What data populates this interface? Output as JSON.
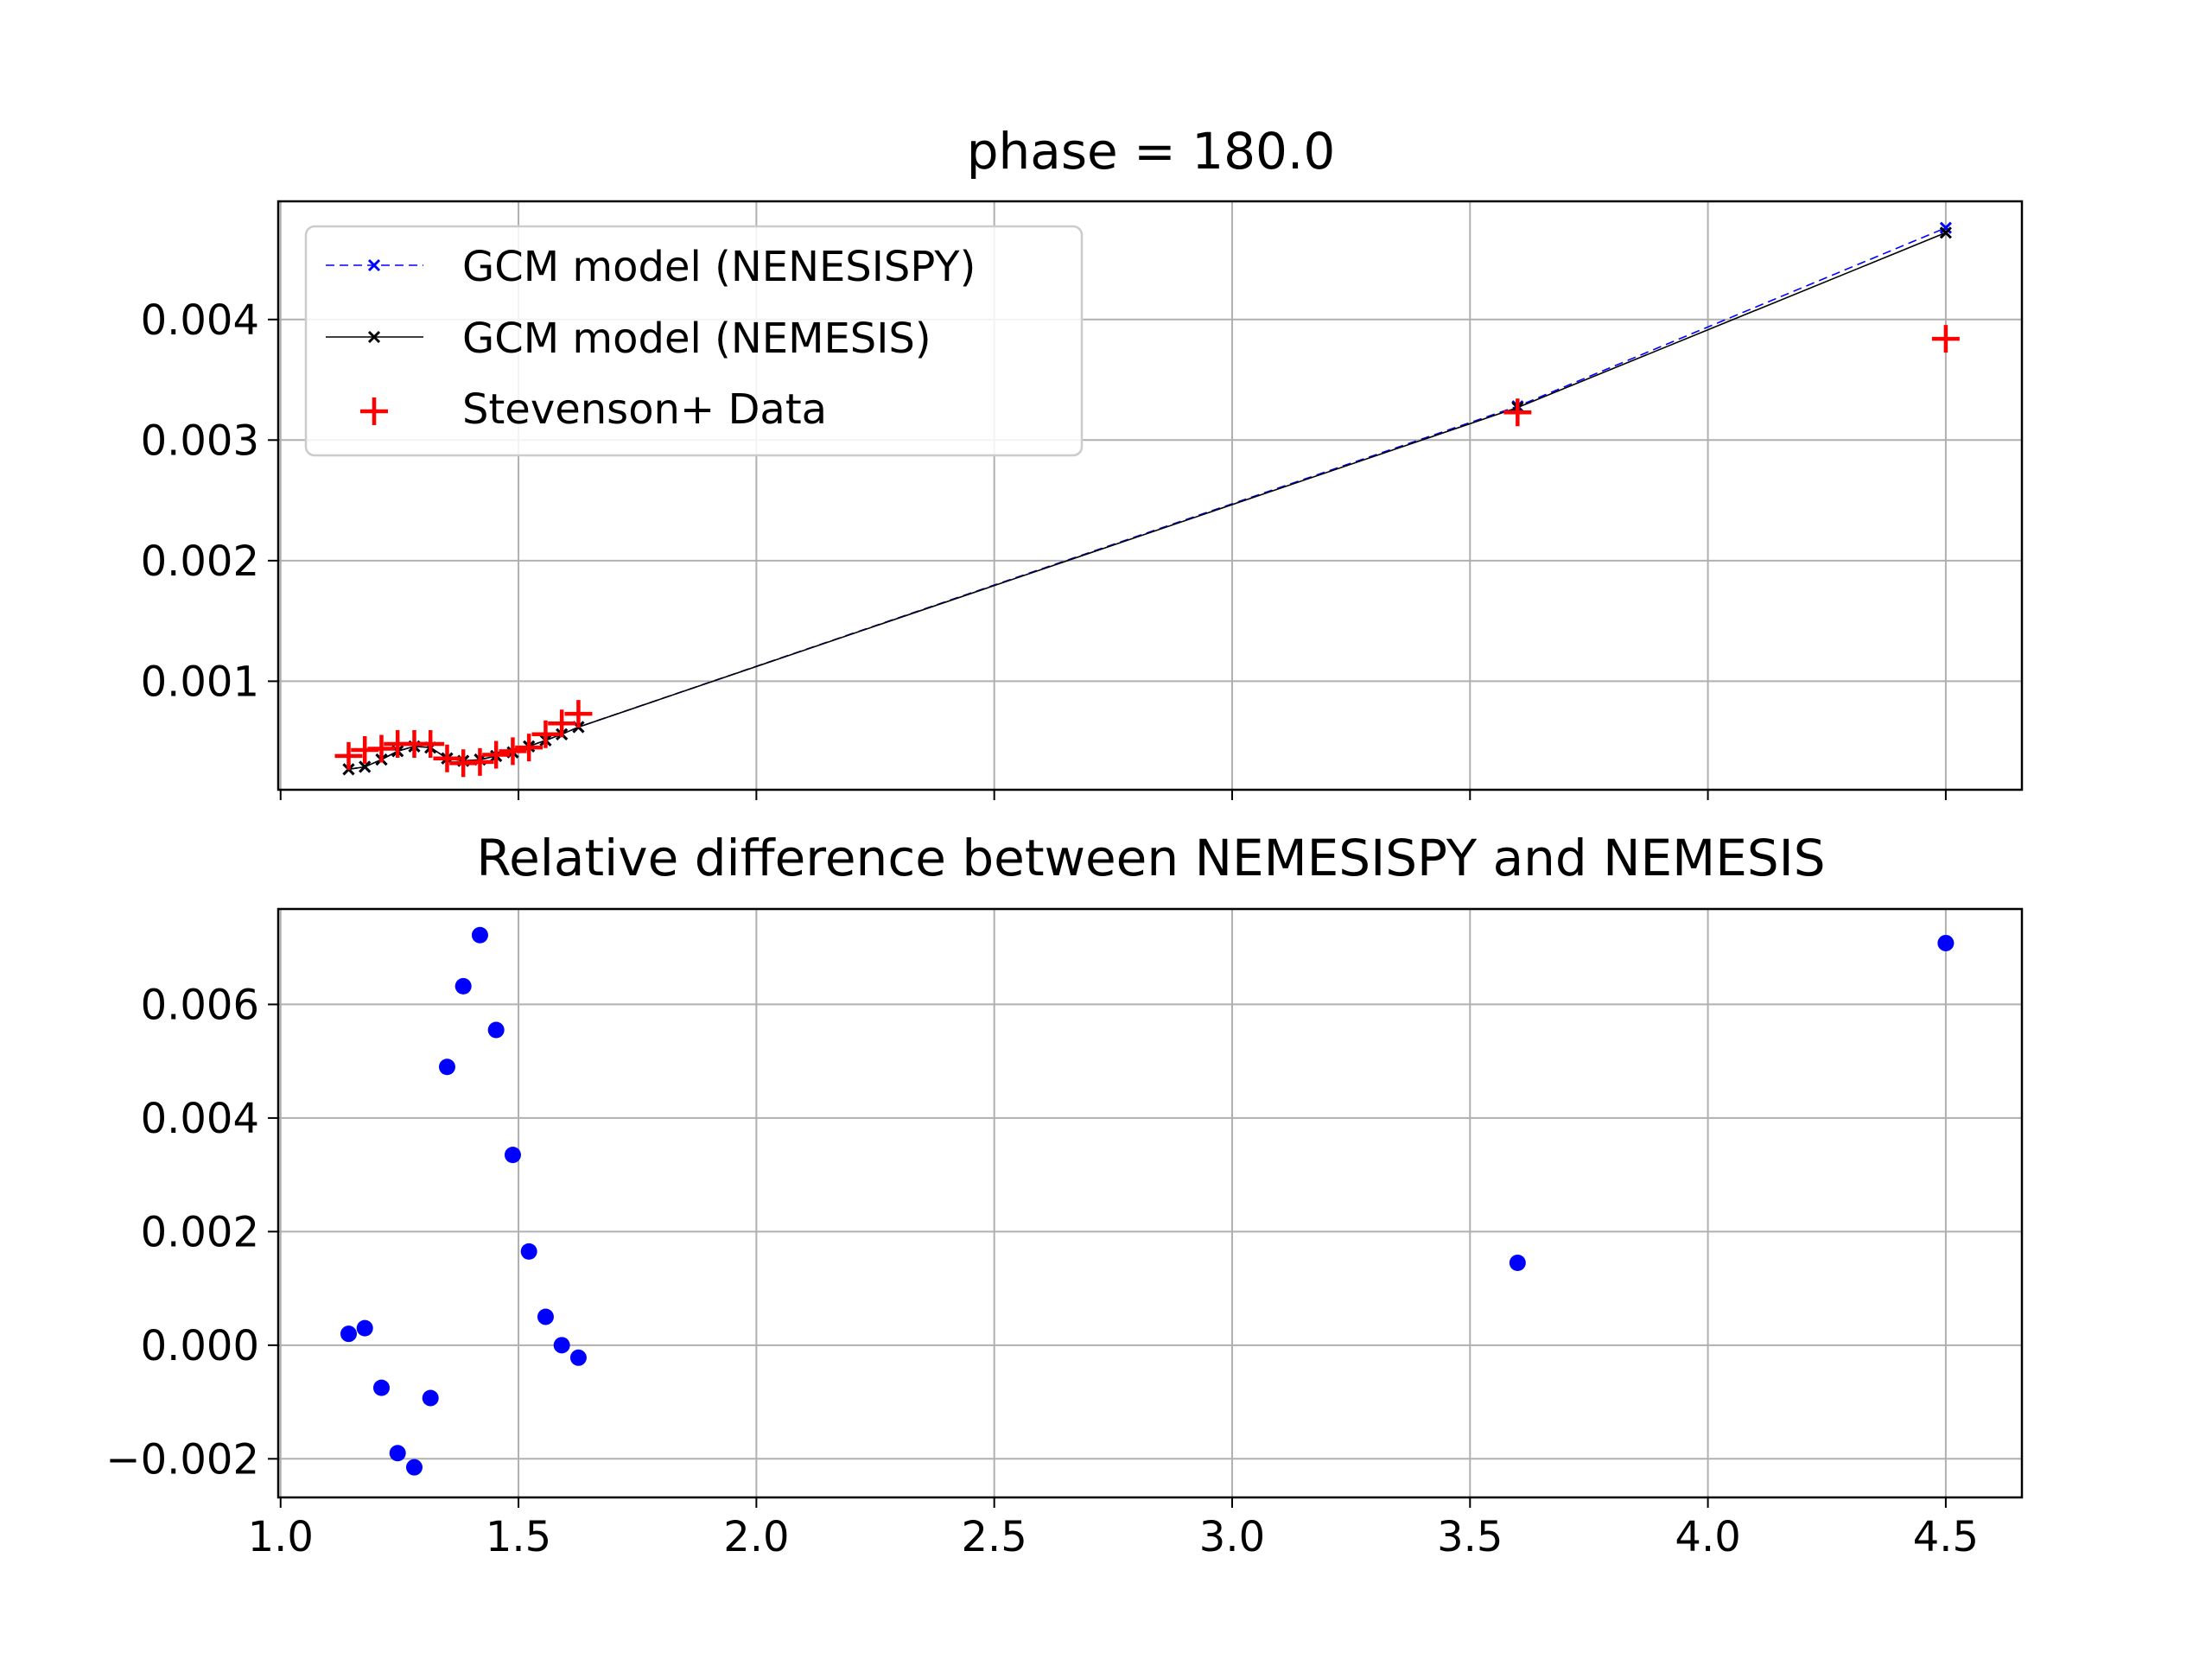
{
  "chart_data": [
    {
      "type": "line",
      "title": "phase = 180.0",
      "xlabel": "",
      "ylabel": "",
      "xlim": [
        0.995,
        4.66
      ],
      "ylim": [
        0.0001,
        0.00498
      ],
      "x_ticks": [
        1.0,
        1.5,
        2.0,
        2.5,
        3.0,
        3.5,
        4.0,
        4.5
      ],
      "y_ticks": [
        0.001,
        0.002,
        0.003,
        0.004
      ],
      "y_tick_labels": [
        "0.001",
        "0.002",
        "0.003",
        "0.004"
      ],
      "grid": true,
      "legend_position": "top-left",
      "x": [
        1.143,
        1.177,
        1.212,
        1.246,
        1.281,
        1.315,
        1.35,
        1.384,
        1.419,
        1.453,
        1.488,
        1.522,
        1.557,
        1.591,
        1.626,
        3.6,
        4.5
      ],
      "series": [
        {
          "name": "GCM model (NENESISPY)",
          "style": "dashed",
          "marker": "x",
          "color": "#0000ff",
          "values": [
            0.00027,
            0.00029,
            0.00035,
            0.00042,
            0.00046,
            0.00045,
            0.00036,
            0.00034,
            0.00035,
            0.00038,
            0.00041,
            0.00046,
            0.00051,
            0.00056,
            0.00062,
            0.00328,
            0.00476
          ]
        },
        {
          "name": "GCM model (NEMESIS)",
          "style": "solid",
          "marker": "x",
          "color": "#000000",
          "values": [
            0.00027,
            0.00029,
            0.00035,
            0.00042,
            0.00046,
            0.00045,
            0.00036,
            0.00034,
            0.00035,
            0.00038,
            0.00041,
            0.00046,
            0.00051,
            0.00056,
            0.00062,
            0.00327,
            0.00472
          ]
        },
        {
          "name": "Stevenson+ Data",
          "style": "scatter",
          "marker": "+",
          "color": "#ff0000",
          "values": [
            0.00038,
            0.00043,
            0.00044,
            0.00048,
            0.00048,
            0.00048,
            0.00036,
            0.00032,
            0.00033,
            0.00039,
            0.00042,
            0.00045,
            0.00056,
            0.00065,
            0.00073,
            0.00323,
            0.00384
          ]
        }
      ]
    },
    {
      "type": "scatter",
      "title": "Relative difference between NEMESISPY and NEMESIS",
      "xlabel": "",
      "ylabel": "",
      "xlim": [
        0.995,
        4.66
      ],
      "ylim": [
        -0.00268,
        0.00768
      ],
      "x_ticks": [
        1.0,
        1.5,
        2.0,
        2.5,
        3.0,
        3.5,
        4.0,
        4.5
      ],
      "x_tick_labels": [
        "1.0",
        "1.5",
        "2.0",
        "2.5",
        "3.0",
        "3.5",
        "4.0",
        "4.5"
      ],
      "y_ticks": [
        -0.002,
        0.0,
        0.002,
        0.004,
        0.006
      ],
      "y_tick_labels": [
        "−0.002",
        "0.000",
        "0.002",
        "0.004",
        "0.006"
      ],
      "grid": true,
      "series": [
        {
          "color": "#0000ff",
          "x": [
            1.143,
            1.177,
            1.212,
            1.246,
            1.281,
            1.315,
            1.35,
            1.384,
            1.419,
            1.453,
            1.488,
            1.522,
            1.557,
            1.591,
            1.626,
            3.6,
            4.5
          ],
          "values": [
            0.0002,
            0.0003,
            -0.00075,
            -0.0019,
            -0.00215,
            -0.00093,
            0.0049,
            0.00632,
            0.00722,
            0.00555,
            0.00335,
            0.00165,
            0.0005,
            0.0,
            -0.00022,
            0.00145,
            0.00708
          ]
        }
      ]
    }
  ]
}
